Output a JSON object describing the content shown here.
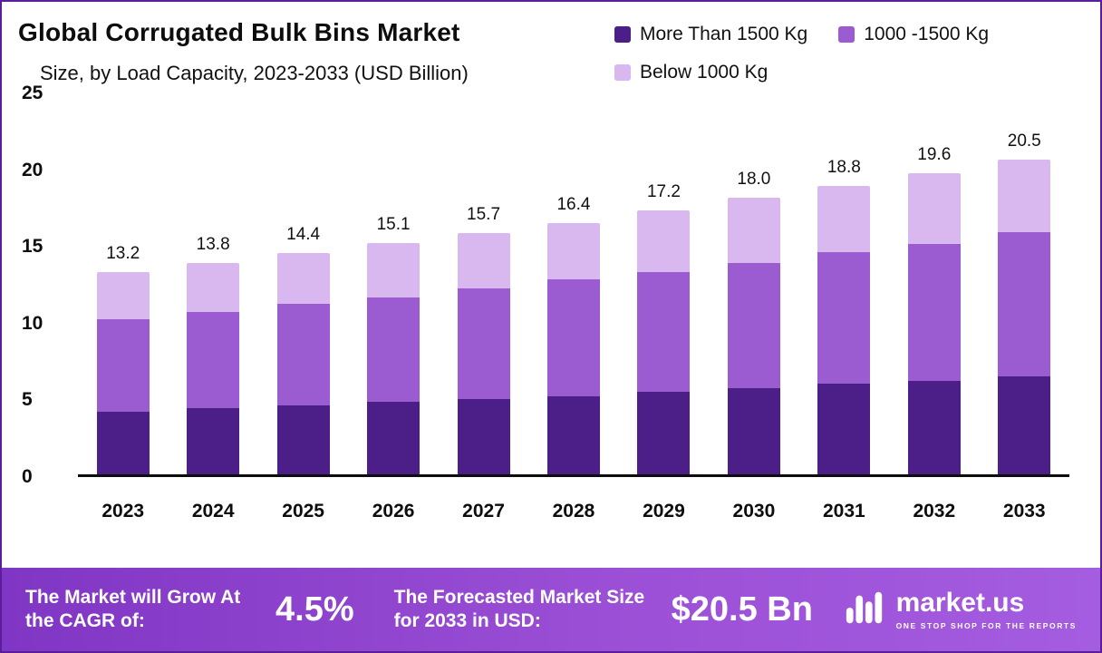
{
  "header": {
    "title": "Global Corrugated Bulk Bins Market",
    "subtitle": "Size, by Load Capacity, 2023-2033 (USD Billion)"
  },
  "legend": [
    {
      "label": "More Than 1500 Kg",
      "color": "#4b1f87"
    },
    {
      "label": "1000 -1500 Kg",
      "color": "#9a5cd0"
    },
    {
      "label": "Below 1000 Kg",
      "color": "#d9b8f0"
    }
  ],
  "chart_data": {
    "type": "bar",
    "stacked": true,
    "title": "Global Corrugated Bulk Bins Market Size, by Load Capacity, 2023-2033 (USD Billion)",
    "categories": [
      "2023",
      "2024",
      "2025",
      "2026",
      "2027",
      "2028",
      "2029",
      "2030",
      "2031",
      "2032",
      "2033"
    ],
    "series": [
      {
        "name": "More Than 1500 Kg",
        "color": "#4b1f87",
        "values": [
          4.1,
          4.3,
          4.5,
          4.7,
          4.9,
          5.1,
          5.4,
          5.6,
          5.9,
          6.1,
          6.4
        ]
      },
      {
        "name": "1000 -1500 Kg",
        "color": "#9a5cd0",
        "values": [
          6.0,
          6.3,
          6.6,
          6.8,
          7.2,
          7.6,
          7.8,
          8.2,
          8.6,
          8.9,
          9.4
        ]
      },
      {
        "name": "Below 1000 Kg",
        "color": "#d9b8f0",
        "values": [
          3.1,
          3.2,
          3.3,
          3.6,
          3.6,
          3.7,
          4.0,
          4.2,
          4.3,
          4.6,
          4.7
        ]
      }
    ],
    "totals_labels": [
      "13.2",
      "13.8",
      "14.4",
      "15.1",
      "15.7",
      "16.4",
      "17.2",
      "18.0",
      "18.8",
      "19.6",
      "20.5"
    ],
    "ylim": [
      0,
      25
    ],
    "yticks": [
      0,
      5,
      10,
      15,
      20,
      25
    ],
    "ylabel": "",
    "xlabel": "",
    "grid": false,
    "legend_position": "top-right"
  },
  "footer": {
    "cagr_label": "The Market will Grow At the CAGR of:",
    "cagr_value": "4.5%",
    "forecast_label": "The Forecasted Market Size for 2033 in USD:",
    "forecast_value": "$20.5 Bn",
    "brand": "market.us",
    "brand_tagline": "ONE STOP SHOP FOR THE REPORTS"
  }
}
